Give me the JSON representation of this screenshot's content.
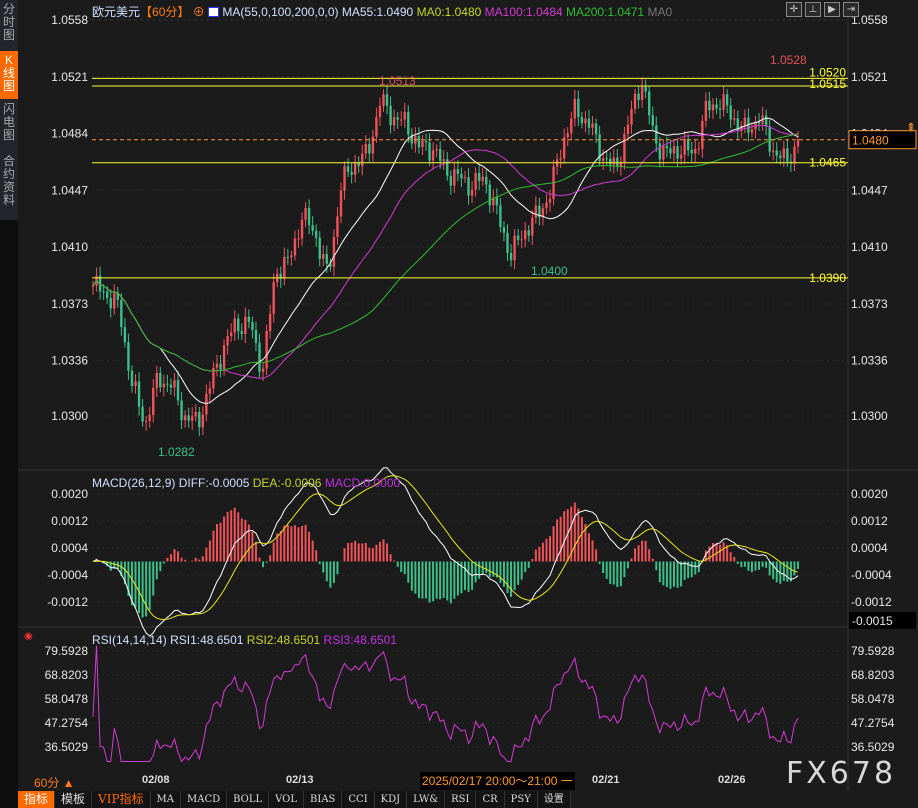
{
  "sidebar": {
    "items": [
      {
        "label": "分时图"
      },
      {
        "label": "K线图",
        "active": true
      },
      {
        "label": "闪电图"
      },
      {
        "label": "合约资料"
      }
    ]
  },
  "header": {
    "symbol": "欧元美元",
    "period": "【60分】",
    "ma_params": "MA(55,0,100,200,0,0)",
    "ma55": "MA55:1.0490",
    "ma0": "MA0:1.0480",
    "ma100": "MA100:1.0484",
    "ma200": "MA200:1.0471",
    "ma0b": "MA0"
  },
  "toolbar": {
    "icons": [
      "crosshair-icon",
      "zoom-range-icon",
      "play-icon",
      "jump-right-icon"
    ]
  },
  "colors": {
    "up": "#f0525a",
    "down": "#3cc08a",
    "ma55": "#ffffff",
    "ma100": "#d43ad4",
    "ma200": "#2fbf2f",
    "levels": "#ffff33",
    "current": "#ff9a2e"
  },
  "chart_data": [
    {
      "type": "candlestick",
      "title": "",
      "ylim": [
        1.0263,
        1.0575
      ],
      "y_ticks": [
        "1.0558",
        "1.0521",
        "1.0484",
        "1.0447",
        "1.0410",
        "1.0373",
        "1.0336",
        "1.0300"
      ],
      "close_approx": [
        1.0385,
        1.038,
        1.037,
        1.032,
        1.0295,
        1.0325,
        1.032,
        1.03,
        1.0295,
        1.032,
        1.0345,
        1.036,
        1.036,
        1.033,
        1.0395,
        1.04,
        1.043,
        1.042,
        1.039,
        1.045,
        1.0465,
        1.047,
        1.0505,
        1.0495,
        1.049,
        1.0475,
        1.0475,
        1.046,
        1.0455,
        1.045,
        1.0455,
        1.043,
        1.0405,
        1.042,
        1.043,
        1.0445,
        1.048,
        1.05,
        1.049,
        1.047,
        1.046,
        1.049,
        1.052,
        1.048,
        1.047,
        1.0475,
        1.047,
        1.05,
        1.0505,
        1.0495,
        1.0485,
        1.0495,
        1.0475,
        1.0465,
        1.0478
      ],
      "levels": [
        {
          "value": 1.052,
          "label": "1.0520"
        },
        {
          "value": 1.0515,
          "label": "1.0515"
        },
        {
          "value": 1.0465,
          "label": "1.0465"
        },
        {
          "value": 1.039,
          "label": "1.0390"
        }
      ],
      "annotations": {
        "high": "1.0528",
        "high2": "1.0513",
        "low": "1.0282",
        "low2": "1.0400"
      },
      "current_price": "1.0480",
      "x_ticks": [
        "02/08",
        "02/13",
        "02/21",
        "02/26"
      ]
    },
    {
      "type": "macd",
      "title": "MACD(26,12,9)",
      "diff": "DIFF:-0.0005",
      "dea": "DEA:-0.0006",
      "macd": "MACD:0.0000",
      "ylim": [
        -0.0021,
        0.0022
      ],
      "y_ticks": [
        "0.0020",
        "0.0012",
        "0.0004",
        "-0.0004",
        "-0.0012"
      ],
      "current": "-0.0015"
    },
    {
      "type": "rsi",
      "title": "RSI(14,14,14)",
      "rsi1": "RSI1:48.6501",
      "rsi2": "RSI2:48.6501",
      "rsi3": "RSI3:48.6501",
      "ylim": [
        29,
        86
      ],
      "y_ticks": [
        "79.5928",
        "68.8203",
        "58.0478",
        "47.2754",
        "36.5029"
      ]
    }
  ],
  "footer": {
    "period": "60分 ▲",
    "tooltip": "2025/02/17 20:00～21:00 一",
    "watermark": "FX678",
    "tabs": [
      "指标",
      "模板",
      "VIP指标",
      "MA",
      "MACD",
      "BOLL",
      "VOL",
      "BIAS",
      "CCI",
      "KDJ",
      "LW&",
      "RSI",
      "CR",
      "PSY",
      "设置"
    ]
  }
}
